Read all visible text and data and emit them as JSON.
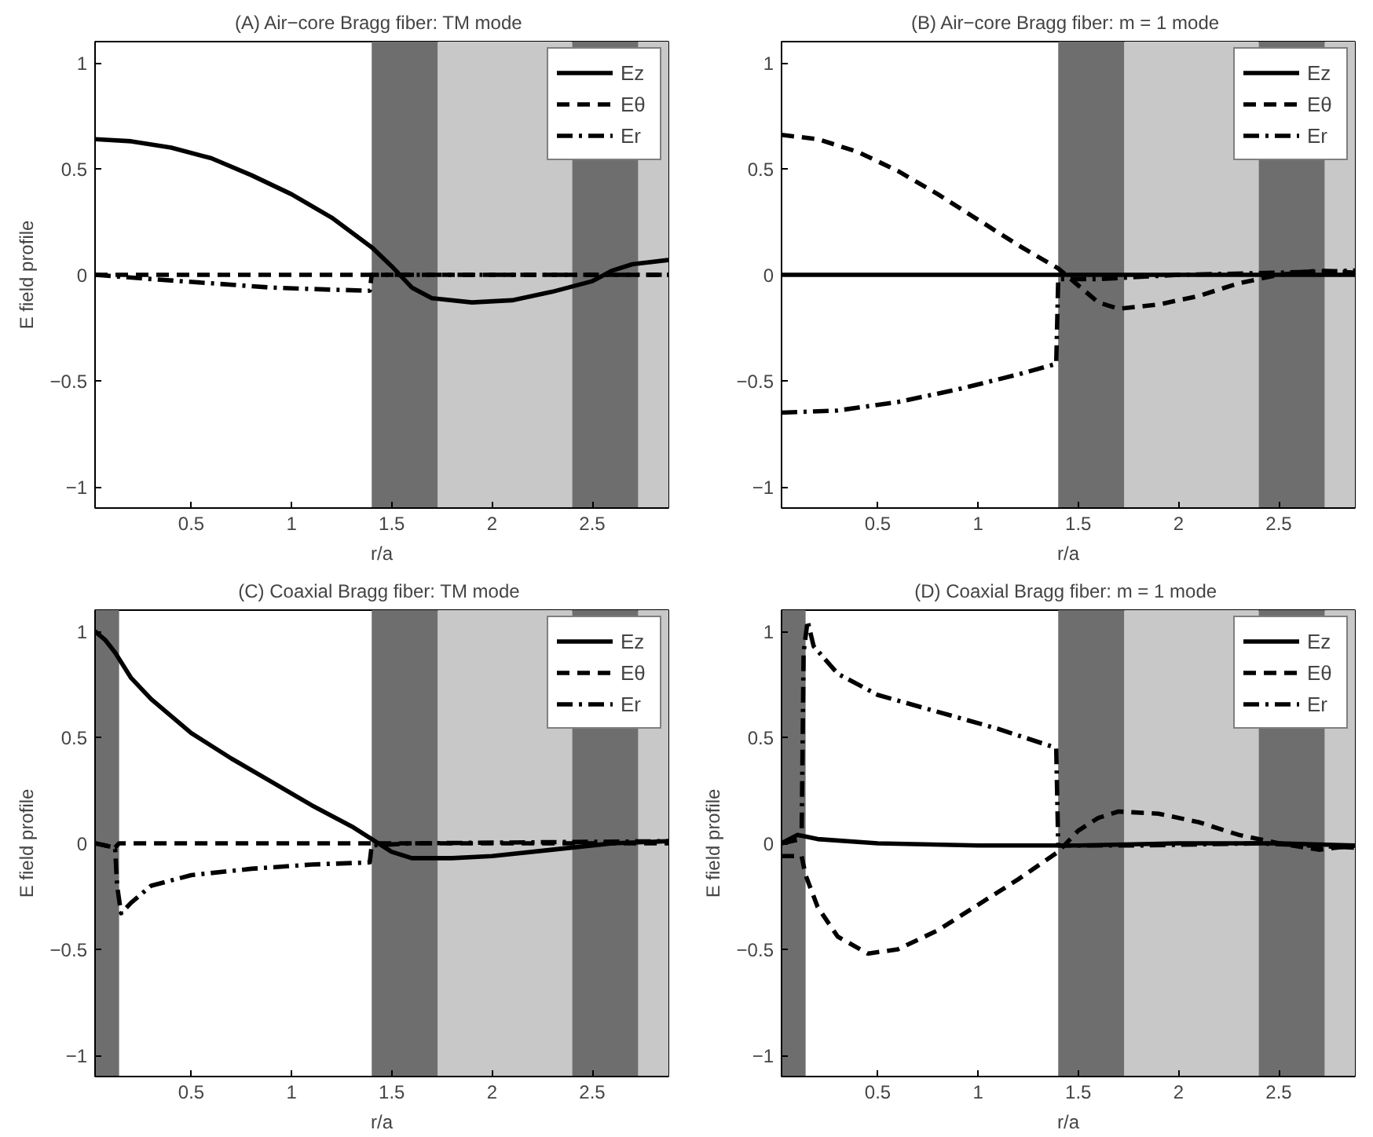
{
  "chart_data": [
    {
      "type": "line",
      "title": "(A)  Air−core Bragg fiber: TM mode",
      "xlabel": "r/a",
      "ylabel": "E field profile",
      "xlim": [
        0.02,
        2.88
      ],
      "ylim": [
        -1.1,
        1.1
      ],
      "xticks": [
        0.5,
        1,
        1.5,
        2,
        2.5
      ],
      "yticks": [
        -1,
        -0.5,
        0,
        0.5,
        1
      ],
      "grid": false,
      "legend": "top right",
      "marker": "none",
      "bands": [
        {
          "axis": "x",
          "from": 1.4,
          "to": 1.73,
          "color": "#6e6e6e"
        },
        {
          "axis": "x",
          "from": 1.73,
          "to": 2.4,
          "color": "#c8c8c8"
        },
        {
          "axis": "x",
          "from": 2.4,
          "to": 2.73,
          "color": "#6e6e6e"
        },
        {
          "axis": "x",
          "from": 2.73,
          "to": 2.88,
          "color": "#c8c8c8"
        }
      ],
      "series": [
        {
          "name": "Ez",
          "color": "#000000",
          "line_style": "solid",
          "x": [
            0.02,
            0.2,
            0.4,
            0.6,
            0.8,
            1.0,
            1.2,
            1.4,
            1.5,
            1.6,
            1.7,
            1.9,
            2.1,
            2.3,
            2.5,
            2.6,
            2.7,
            2.88
          ],
          "values": [
            0.64,
            0.63,
            0.6,
            0.55,
            0.47,
            0.38,
            0.27,
            0.13,
            0.04,
            -0.06,
            -0.11,
            -0.13,
            -0.12,
            -0.08,
            -0.03,
            0.02,
            0.05,
            0.07
          ]
        },
        {
          "name": "Eθ",
          "color": "#000000",
          "line_style": "dashed",
          "x": [
            0.02,
            1.4,
            2.88
          ],
          "values": [
            0.0,
            0.0,
            0.0
          ]
        },
        {
          "name": "Er",
          "color": "#000000",
          "line_style": "dashdot",
          "x": [
            0.02,
            0.3,
            0.6,
            0.9,
            1.2,
            1.39,
            1.4,
            2.88
          ],
          "values": [
            0.0,
            -0.02,
            -0.04,
            -0.06,
            -0.07,
            -0.075,
            0.0,
            0.0
          ]
        }
      ]
    },
    {
      "type": "line",
      "title": "(B)  Air−core Bragg fiber: m = 1 mode",
      "xlabel": "r/a",
      "xlim": [
        0.02,
        2.88
      ],
      "ylim": [
        -1.1,
        1.1
      ],
      "xticks": [
        0.5,
        1,
        1.5,
        2,
        2.5
      ],
      "yticks": [
        -1,
        -0.5,
        0,
        0.5,
        1
      ],
      "grid": false,
      "legend": "top right",
      "marker": "none",
      "bands": [
        {
          "axis": "x",
          "from": 1.4,
          "to": 1.73,
          "color": "#6e6e6e"
        },
        {
          "axis": "x",
          "from": 1.73,
          "to": 2.4,
          "color": "#c8c8c8"
        },
        {
          "axis": "x",
          "from": 2.4,
          "to": 2.73,
          "color": "#6e6e6e"
        },
        {
          "axis": "x",
          "from": 2.73,
          "to": 2.88,
          "color": "#c8c8c8"
        }
      ],
      "series": [
        {
          "name": "Ez",
          "color": "#000000",
          "line_style": "solid",
          "x": [
            0.02,
            1.4,
            2.0,
            2.88
          ],
          "values": [
            0.0,
            0.0,
            0.0,
            0.0
          ]
        },
        {
          "name": "Eθ",
          "color": "#000000",
          "line_style": "dashed",
          "x": [
            0.02,
            0.2,
            0.4,
            0.6,
            0.8,
            1.0,
            1.2,
            1.4,
            1.5,
            1.6,
            1.7,
            1.9,
            2.1,
            2.3,
            2.5,
            2.7,
            2.88
          ],
          "values": [
            0.66,
            0.64,
            0.58,
            0.49,
            0.38,
            0.26,
            0.14,
            0.03,
            -0.05,
            -0.13,
            -0.16,
            -0.14,
            -0.1,
            -0.04,
            0.0,
            0.02,
            0.01
          ]
        },
        {
          "name": "Er",
          "color": "#000000",
          "line_style": "dashdot",
          "x": [
            0.02,
            0.3,
            0.6,
            0.9,
            1.2,
            1.39,
            1.4,
            1.6,
            2.0,
            2.5,
            2.88
          ],
          "values": [
            -0.65,
            -0.64,
            -0.6,
            -0.54,
            -0.47,
            -0.42,
            -0.02,
            -0.02,
            0.0,
            0.01,
            0.02
          ]
        }
      ]
    },
    {
      "type": "line",
      "title": "(C)  Coaxial Bragg fiber: TM mode",
      "xlabel": "r/a",
      "ylabel": "E field profile",
      "xlim": [
        0.02,
        2.88
      ],
      "ylim": [
        -1.1,
        1.1
      ],
      "xticks": [
        0.5,
        1,
        1.5,
        2,
        2.5
      ],
      "yticks": [
        -1,
        -0.5,
        0,
        0.5,
        1
      ],
      "grid": false,
      "legend": "top right",
      "marker": "none",
      "bands": [
        {
          "axis": "x",
          "from": 0.02,
          "to": 0.14,
          "color": "#6e6e6e"
        },
        {
          "axis": "x",
          "from": 1.4,
          "to": 1.73,
          "color": "#6e6e6e"
        },
        {
          "axis": "x",
          "from": 1.73,
          "to": 2.4,
          "color": "#c8c8c8"
        },
        {
          "axis": "x",
          "from": 2.4,
          "to": 2.73,
          "color": "#6e6e6e"
        },
        {
          "axis": "x",
          "from": 2.73,
          "to": 2.88,
          "color": "#c8c8c8"
        }
      ],
      "series": [
        {
          "name": "Ez",
          "color": "#000000",
          "line_style": "solid",
          "x": [
            0.02,
            0.07,
            0.12,
            0.2,
            0.3,
            0.5,
            0.7,
            0.9,
            1.1,
            1.3,
            1.4,
            1.5,
            1.6,
            1.8,
            2.0,
            2.3,
            2.6,
            2.88
          ],
          "values": [
            1.0,
            0.96,
            0.9,
            0.78,
            0.68,
            0.52,
            0.4,
            0.29,
            0.18,
            0.08,
            0.02,
            -0.04,
            -0.07,
            -0.07,
            -0.06,
            -0.03,
            0.0,
            0.01
          ]
        },
        {
          "name": "Eθ",
          "color": "#000000",
          "line_style": "dashed",
          "x": [
            0.02,
            0.12,
            0.14,
            1.4,
            2.88
          ],
          "values": [
            0.0,
            -0.02,
            0.0,
            0.0,
            0.0
          ]
        },
        {
          "name": "Er",
          "color": "#000000",
          "line_style": "dashdot",
          "x": [
            0.02,
            0.12,
            0.13,
            0.15,
            0.2,
            0.3,
            0.5,
            0.8,
            1.1,
            1.39,
            1.4,
            1.6,
            2.88
          ],
          "values": [
            0.0,
            -0.02,
            -0.2,
            -0.33,
            -0.28,
            -0.2,
            -0.15,
            -0.12,
            -0.1,
            -0.09,
            -0.01,
            0.0,
            0.01
          ]
        }
      ]
    },
    {
      "type": "line",
      "title": "(D)  Coaxial Bragg fiber: m = 1 mode",
      "xlabel": "r/a",
      "ylabel": "E field profile",
      "xlim": [
        0.02,
        2.88
      ],
      "ylim": [
        -1.1,
        1.1
      ],
      "xticks": [
        0.5,
        1,
        1.5,
        2,
        2.5
      ],
      "yticks": [
        -1,
        -0.5,
        0,
        0.5,
        1
      ],
      "grid": false,
      "legend": "top right",
      "marker": "none",
      "bands": [
        {
          "axis": "x",
          "from": 0.02,
          "to": 0.14,
          "color": "#6e6e6e"
        },
        {
          "axis": "x",
          "from": 1.4,
          "to": 1.73,
          "color": "#6e6e6e"
        },
        {
          "axis": "x",
          "from": 1.73,
          "to": 2.4,
          "color": "#c8c8c8"
        },
        {
          "axis": "x",
          "from": 2.4,
          "to": 2.73,
          "color": "#6e6e6e"
        },
        {
          "axis": "x",
          "from": 2.73,
          "to": 2.88,
          "color": "#c8c8c8"
        }
      ],
      "series": [
        {
          "name": "Ez",
          "color": "#000000",
          "line_style": "solid",
          "x": [
            0.02,
            0.1,
            0.2,
            0.5,
            1.0,
            1.5,
            2.0,
            2.5,
            2.88
          ],
          "values": [
            0.0,
            0.04,
            0.02,
            0.0,
            -0.01,
            -0.01,
            0.0,
            0.0,
            -0.01
          ]
        },
        {
          "name": "Eθ",
          "color": "#000000",
          "line_style": "dashed",
          "x": [
            0.02,
            0.12,
            0.14,
            0.2,
            0.3,
            0.45,
            0.6,
            0.8,
            1.0,
            1.2,
            1.4,
            1.5,
            1.6,
            1.7,
            1.9,
            2.1,
            2.3,
            2.5,
            2.7,
            2.88
          ],
          "values": [
            -0.06,
            -0.06,
            -0.15,
            -0.3,
            -0.44,
            -0.52,
            -0.5,
            -0.41,
            -0.29,
            -0.17,
            -0.04,
            0.06,
            0.12,
            0.15,
            0.14,
            0.1,
            0.04,
            0.0,
            -0.03,
            -0.01
          ]
        },
        {
          "name": "Er",
          "color": "#000000",
          "line_style": "dashdot",
          "x": [
            0.02,
            0.12,
            0.13,
            0.15,
            0.18,
            0.3,
            0.5,
            0.8,
            1.1,
            1.39,
            1.4,
            1.8,
            2.4,
            2.88
          ],
          "values": [
            0.0,
            0.02,
            0.9,
            1.05,
            0.93,
            0.8,
            0.7,
            0.62,
            0.54,
            0.45,
            -0.01,
            -0.01,
            0.0,
            -0.02
          ]
        }
      ]
    }
  ]
}
